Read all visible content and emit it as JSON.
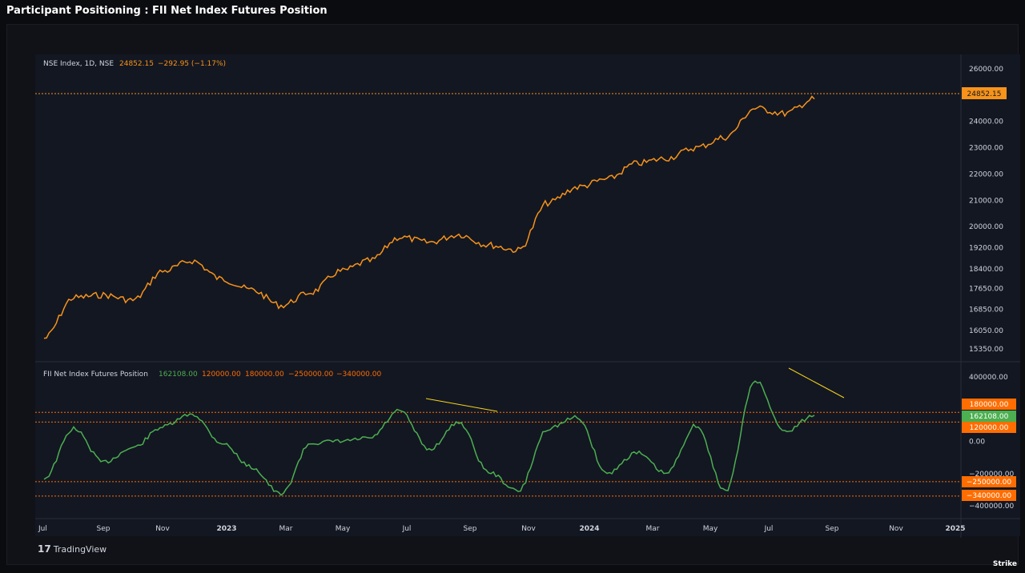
{
  "page": {
    "title": "Participant Positioning : FII Net Index Futures Position",
    "watermark": "TradingView",
    "brand": "Strike"
  },
  "colors": {
    "background": "#131722",
    "price_line": "#f7931a",
    "indicator_line": "#4caf50",
    "level_line": "#ff6d00",
    "trend_line": "#f5d31a",
    "axis_text": "#d1d4dc"
  },
  "chart_data": [
    {
      "type": "line",
      "legend": {
        "symbol": "NSE Index, 1D, NSE",
        "last": "24852.15",
        "change": "−292.95 (−1.17%)"
      },
      "y_ticks": [
        "26000.00",
        "24000.00",
        "23000.00",
        "22000.00",
        "21000.00",
        "20000.00",
        "19200.00",
        "18400.00",
        "17650.00",
        "16850.00",
        "16050.00",
        "15350.00"
      ],
      "last_value_label": "24852.15",
      "x_ticks": [
        "Jul",
        "Sep",
        "Nov",
        "2023",
        "Mar",
        "May",
        "Jul",
        "Sep",
        "Nov",
        "2024",
        "Mar",
        "May",
        "Jul",
        "Sep",
        "Nov",
        "2025"
      ],
      "x": [
        "2022-07",
        "2022-08",
        "2022-09",
        "2022-10",
        "2022-11",
        "2022-12",
        "2023-01",
        "2023-02",
        "2023-03",
        "2023-04",
        "2023-05",
        "2023-06",
        "2023-07",
        "2023-08",
        "2023-09",
        "2023-10",
        "2023-11",
        "2023-12",
        "2024-01",
        "2024-02",
        "2024-03",
        "2024-04",
        "2024-05",
        "2024-06",
        "2024-07",
        "2024-08",
        "2024-09"
      ],
      "series": [
        {
          "values": [
            15750,
            17300,
            17400,
            17200,
            18300,
            18700,
            18000,
            17600,
            17000,
            17500,
            18300,
            18700,
            19600,
            19400,
            19700,
            19300,
            19100,
            20900,
            21500,
            21800,
            22400,
            22600,
            23000,
            23400,
            24500,
            24300,
            24852
          ]
        }
      ]
    },
    {
      "type": "line",
      "legend": {
        "name": "FII Net Index Futures Position",
        "values": [
          "162108.00",
          "120000.00",
          "180000.00",
          "−250000.00",
          "−340000.00"
        ]
      },
      "y_ticks": [
        "400000.00",
        "0.00",
        "−200000.00",
        "−400000.00"
      ],
      "levels": [
        {
          "value": 180000,
          "label": "180000.00"
        },
        {
          "value": 120000,
          "label": "120000.00"
        },
        {
          "value": -250000,
          "label": "−250000.00"
        },
        {
          "value": -340000,
          "label": "−340000.00"
        }
      ],
      "last_value_label": "162108.00",
      "x": [
        "2022-07",
        "2022-08",
        "2022-09",
        "2022-10",
        "2022-11",
        "2022-12",
        "2023-01",
        "2023-02",
        "2023-03",
        "2023-04",
        "2023-05",
        "2023-06",
        "2023-07",
        "2023-08",
        "2023-09",
        "2023-10",
        "2023-11",
        "2023-12",
        "2024-01",
        "2024-02",
        "2024-03",
        "2024-04",
        "2024-05",
        "2024-06",
        "2024-07",
        "2024-08",
        "2024-09"
      ],
      "series": [
        {
          "values": [
            -230000,
            80000,
            -130000,
            -40000,
            90000,
            170000,
            -10000,
            -160000,
            -330000,
            -10000,
            0,
            20000,
            190000,
            -50000,
            120000,
            -190000,
            -310000,
            80000,
            150000,
            -200000,
            -70000,
            -200000,
            100000,
            -310000,
            380000,
            60000,
            162108
          ]
        }
      ]
    }
  ]
}
